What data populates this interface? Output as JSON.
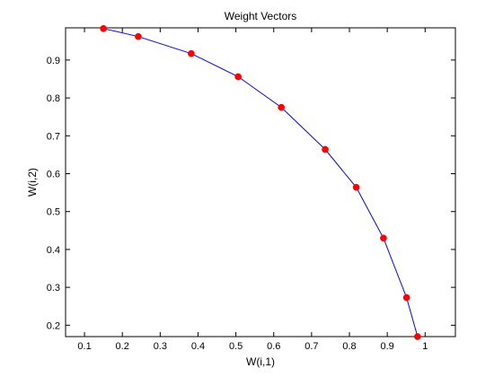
{
  "chart_data": {
    "type": "line",
    "title": "Weight Vectors",
    "xlabel": "W(i,1)",
    "ylabel": "W(i,2)",
    "xlim": [
      0.05,
      1.08
    ],
    "ylim": [
      0.17,
      0.985
    ],
    "xticks": [
      0.1,
      0.2,
      0.3,
      0.4,
      0.5,
      0.6,
      0.7,
      0.8,
      0.9,
      1.0
    ],
    "xtick_labels": [
      "0.1",
      "0.2",
      "0.3",
      "0.4",
      "0.5",
      "0.6",
      "0.7",
      "0.8",
      "0.9",
      "1"
    ],
    "yticks": [
      0.2,
      0.3,
      0.4,
      0.5,
      0.6,
      0.7,
      0.8,
      0.9
    ],
    "ytick_labels": [
      "0.2",
      "0.3",
      "0.4",
      "0.5",
      "0.6",
      "0.7",
      "0.8",
      "0.9"
    ],
    "grid": false,
    "series": [
      {
        "x": [
          0.15,
          0.242,
          0.382,
          0.506,
          0.62,
          0.736,
          0.818,
          0.89,
          0.951,
          0.98
        ],
        "y": [
          0.983,
          0.962,
          0.917,
          0.856,
          0.775,
          0.664,
          0.564,
          0.43,
          0.273,
          0.17
        ],
        "line_color": "#0000ff",
        "marker_color": "#ff0000"
      }
    ]
  }
}
